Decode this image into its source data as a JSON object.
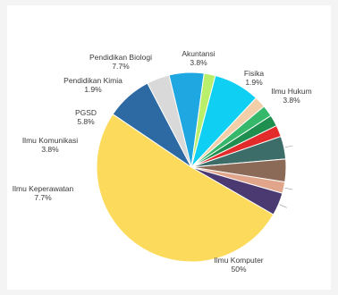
{
  "chart_data": {
    "type": "pie",
    "slices": [
      {
        "label": "Ilmu Komputer",
        "pct": "50%",
        "value": 50,
        "color": "#fcdb5c"
      },
      {
        "label": "Ilmu Keperawatan",
        "pct": "7.7%",
        "value": 7.7,
        "color": "#2d6aa3"
      },
      {
        "label": "Ilmu Komunikasi",
        "pct": "3.8%",
        "value": 3.8,
        "color": "#d9d9d9"
      },
      {
        "label": "PGSD",
        "pct": "5.8%",
        "value": 5.8,
        "color": "#1ea7e1"
      },
      {
        "label": "Pendidikan Kimia",
        "pct": "1.9%",
        "value": 1.9,
        "color": "#b9ef6a"
      },
      {
        "label": "Pendidikan Biologi",
        "pct": "7.7%",
        "value": 7.7,
        "color": "#0fd0f2"
      },
      {
        "label": "",
        "pct": "",
        "value": 1.9,
        "color": "#f2cfa8"
      },
      {
        "label": "",
        "pct": "",
        "value": 1.9,
        "color": "#35b86a"
      },
      {
        "label": "",
        "pct": "",
        "value": 1.9,
        "color": "#1f8f50"
      },
      {
        "label": "",
        "pct": "",
        "value": 1.9,
        "color": "#e32b2b"
      },
      {
        "label": "Akuntansi",
        "pct": "3.8%",
        "value": 3.8,
        "color": "#3d6d68"
      },
      {
        "label": "",
        "pct": "",
        "value": 3.8,
        "color": "#8c6a58"
      },
      {
        "label": "Fisika",
        "pct": "1.9%",
        "value": 1.9,
        "color": "#e0a58a"
      },
      {
        "label": "Ilmu Hukum",
        "pct": "3.8%",
        "value": 3.8,
        "color": "#4b3a72"
      }
    ]
  }
}
